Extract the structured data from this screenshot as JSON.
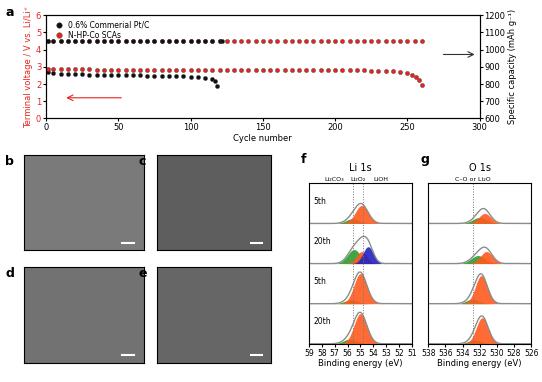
{
  "chart_data": [
    {
      "type": "line",
      "panel": "a",
      "xlabel": "Cycle number",
      "ylabel": "Terminal voltage / V vs. Li/Li⁺",
      "y2label": "Specific capacity (mAh g⁻¹)",
      "xlim": [
        0,
        300
      ],
      "xticks": [
        0,
        50,
        100,
        150,
        200,
        250,
        300
      ],
      "ylim": [
        0,
        6
      ],
      "yticks": [
        0,
        1,
        2,
        3,
        4,
        5,
        6
      ],
      "y2lim": [
        600,
        1200
      ],
      "y2ticks": [
        600,
        700,
        800,
        900,
        1000,
        1100,
        1200
      ],
      "legend": "upper left",
      "series": [
        {
          "name": "0.6% Commerial Pt/C",
          "color": "#111111",
          "marker": "circle",
          "x": [
            1,
            5,
            10,
            15,
            20,
            25,
            30,
            35,
            40,
            45,
            50,
            55,
            60,
            65,
            70,
            75,
            80,
            85,
            90,
            95,
            100,
            105,
            110,
            115,
            117,
            118
          ],
          "values": [
            2.68,
            2.62,
            2.6,
            2.58,
            2.57,
            2.56,
            2.55,
            2.55,
            2.54,
            2.53,
            2.52,
            2.52,
            2.51,
            2.5,
            2.49,
            2.48,
            2.47,
            2.46,
            2.45,
            2.44,
            2.42,
            2.4,
            2.36,
            2.28,
            2.2,
            1.88
          ]
        },
        {
          "name": "N-HP-Co SCAs",
          "color": "#e8231e",
          "marker": "circle",
          "x": [
            1,
            5,
            10,
            15,
            20,
            25,
            30,
            35,
            40,
            45,
            50,
            55,
            60,
            65,
            70,
            75,
            80,
            85,
            90,
            95,
            100,
            105,
            110,
            115,
            120,
            125,
            130,
            135,
            140,
            145,
            150,
            155,
            160,
            165,
            170,
            175,
            180,
            185,
            190,
            195,
            200,
            205,
            210,
            215,
            220,
            225,
            230,
            235,
            240,
            245,
            250,
            253,
            256,
            258,
            260
          ],
          "values": [
            2.9,
            2.87,
            2.86,
            2.86,
            2.85,
            2.85,
            2.85,
            2.84,
            2.84,
            2.84,
            2.84,
            2.84,
            2.83,
            2.83,
            2.83,
            2.83,
            2.83,
            2.83,
            2.83,
            2.82,
            2.82,
            2.82,
            2.82,
            2.82,
            2.82,
            2.82,
            2.82,
            2.82,
            2.82,
            2.82,
            2.82,
            2.81,
            2.81,
            2.81,
            2.81,
            2.81,
            2.81,
            2.81,
            2.81,
            2.81,
            2.81,
            2.8,
            2.8,
            2.79,
            2.79,
            2.78,
            2.77,
            2.76,
            2.74,
            2.7,
            2.62,
            2.52,
            2.4,
            2.25,
            1.95
          ]
        },
        {
          "name": "N-HP-Co SCAs",
          "color": "#e8231e",
          "marker": "circle",
          "axis": "y2",
          "x": [
            1,
            5,
            10,
            15,
            20,
            25,
            30,
            35,
            40,
            45,
            50,
            55,
            60,
            65,
            70,
            75,
            80,
            85,
            90,
            95,
            100,
            105,
            110,
            115,
            120,
            125,
            130,
            135,
            140,
            145,
            150,
            155,
            160,
            165,
            170,
            175,
            180,
            185,
            190,
            195,
            200,
            205,
            210,
            215,
            220,
            225,
            230,
            235,
            240,
            245,
            250,
            255,
            260
          ],
          "values": [
            1050,
            1050,
            1050,
            1050,
            1050,
            1050,
            1050,
            1050,
            1050,
            1050,
            1050,
            1050,
            1050,
            1050,
            1050,
            1050,
            1050,
            1050,
            1050,
            1050,
            1050,
            1050,
            1050,
            1050,
            1050,
            1050,
            1050,
            1050,
            1050,
            1050,
            1050,
            1050,
            1050,
            1050,
            1050,
            1050,
            1050,
            1050,
            1050,
            1050,
            1050,
            1050,
            1050,
            1050,
            1050,
            1050,
            1050,
            1050,
            1050,
            1050,
            1050,
            1050,
            1050
          ]
        },
        {
          "name": "0.6% Commerial Pt/C",
          "color": "#111111",
          "marker": "circle",
          "axis": "y2",
          "x": [
            1,
            5,
            10,
            15,
            20,
            25,
            30,
            35,
            40,
            45,
            50,
            55,
            60,
            65,
            70,
            75,
            80,
            85,
            90,
            95,
            100,
            105,
            110,
            115,
            120,
            122
          ],
          "values": [
            1050,
            1050,
            1050,
            1050,
            1050,
            1050,
            1050,
            1050,
            1050,
            1050,
            1050,
            1050,
            1050,
            1050,
            1050,
            1050,
            1050,
            1050,
            1050,
            1050,
            1050,
            1050,
            1050,
            1050,
            1050,
            1050
          ]
        }
      ]
    },
    {
      "type": "spectra",
      "panel": "f",
      "title": "Li 1s",
      "xlabel": "Binding energy (eV)",
      "xlim": [
        59,
        51
      ],
      "xticks": [
        59,
        58,
        57,
        56,
        55,
        54,
        53,
        52,
        51
      ],
      "ylim": [
        0,
        4
      ],
      "tick_labels": "x",
      "color": "#8c8c8c",
      "reference_lines": [
        55.6,
        54.8
      ],
      "peak_labels": [
        {
          "text": "Li₂CO₃",
          "x": 57.0
        },
        {
          "text": "Li₂O₂",
          "x": 55.2
        },
        {
          "text": "LiOH",
          "x": 53.4
        }
      ],
      "spectra": [
        {
          "label": "5th",
          "peaks": [
            {
              "color": "#2e9b2e",
              "center": 55.6,
              "height": 0.12,
              "width": 0.5
            },
            {
              "color": "#ff5a1f",
              "center": 54.9,
              "height": 0.45,
              "width": 0.5
            }
          ]
        },
        {
          "label": "20th",
          "peaks": [
            {
              "color": "#2e9b2e",
              "center": 55.5,
              "height": 0.35,
              "width": 0.5
            },
            {
              "color": "#ff5a1f",
              "center": 54.9,
              "height": 0.3,
              "width": 0.4
            },
            {
              "color": "#2222c0",
              "center": 54.4,
              "height": 0.42,
              "width": 0.4
            }
          ]
        },
        {
          "label": "5th",
          "peaks": [
            {
              "color": "#2e9b2e",
              "center": 55.7,
              "height": 0.1,
              "width": 0.5
            },
            {
              "color": "#ff5a1f",
              "center": 55.0,
              "height": 0.75,
              "width": 0.5
            }
          ]
        },
        {
          "label": "20th",
          "peaks": [
            {
              "color": "#2e9b2e",
              "center": 55.8,
              "height": 0.12,
              "width": 0.5
            },
            {
              "color": "#ff5a1f",
              "center": 55.0,
              "height": 0.75,
              "width": 0.5
            }
          ]
        }
      ]
    },
    {
      "type": "spectra",
      "panel": "g",
      "title": "O 1s",
      "xlabel": "Binding energy (eV)",
      "xlim": [
        538,
        526
      ],
      "xticks": [
        538,
        536,
        534,
        532,
        530,
        528,
        526
      ],
      "ylim": [
        0,
        4
      ],
      "tick_labels": "x",
      "color": "#8c8c8c",
      "reference_lines": [
        532.8
      ],
      "peak_labels": [
        {
          "text": "C–O or Li₂O",
          "x": 532.8
        }
      ],
      "spectra": [
        {
          "peaks": [
            {
              "color": "#2e9b2e",
              "center": 532.0,
              "height": 0.15,
              "width": 0.8
            },
            {
              "color": "#ff5a1f",
              "center": 531.4,
              "height": 0.25,
              "width": 0.7
            }
          ]
        },
        {
          "peaks": [
            {
              "color": "#2e9b2e",
              "center": 532.2,
              "height": 0.2,
              "width": 0.8
            },
            {
              "color": "#ff5a1f",
              "center": 531.2,
              "height": 0.3,
              "width": 0.7
            }
          ]
        },
        {
          "peaks": [
            {
              "color": "#2e9b2e",
              "center": 532.8,
              "height": 0.12,
              "width": 0.7
            },
            {
              "color": "#ff5a1f",
              "center": 531.8,
              "height": 0.7,
              "width": 0.7
            }
          ]
        },
        {
          "peaks": [
            {
              "color": "#2e9b2e",
              "center": 532.6,
              "height": 0.1,
              "width": 0.7
            },
            {
              "color": "#ff5a1f",
              "center": 531.7,
              "height": 0.65,
              "width": 0.7
            }
          ]
        }
      ]
    }
  ],
  "images": [
    {
      "label": "b"
    },
    {
      "label": "c"
    },
    {
      "label": "d"
    },
    {
      "label": "e"
    }
  ]
}
